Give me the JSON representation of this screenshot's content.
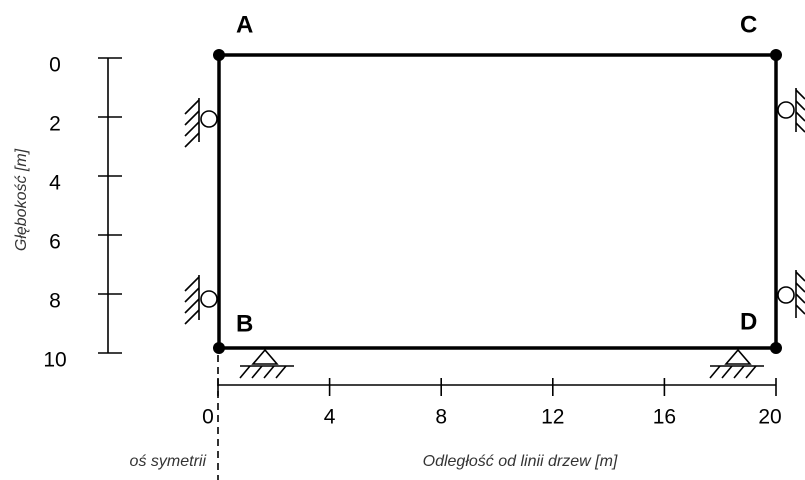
{
  "nodes": [
    {
      "label": "A"
    },
    {
      "label": "B"
    },
    {
      "label": "C"
    },
    {
      "label": "D"
    }
  ],
  "depth_axis": {
    "label": "Głębokość [m]",
    "ticks": [
      0,
      2,
      4,
      6,
      8,
      10
    ]
  },
  "distance_axis": {
    "label": "Odległość od linii drzew [m]",
    "ticks": [
      0,
      4,
      8,
      12,
      16,
      20
    ]
  },
  "symmetry_label": "oś symetrii"
}
